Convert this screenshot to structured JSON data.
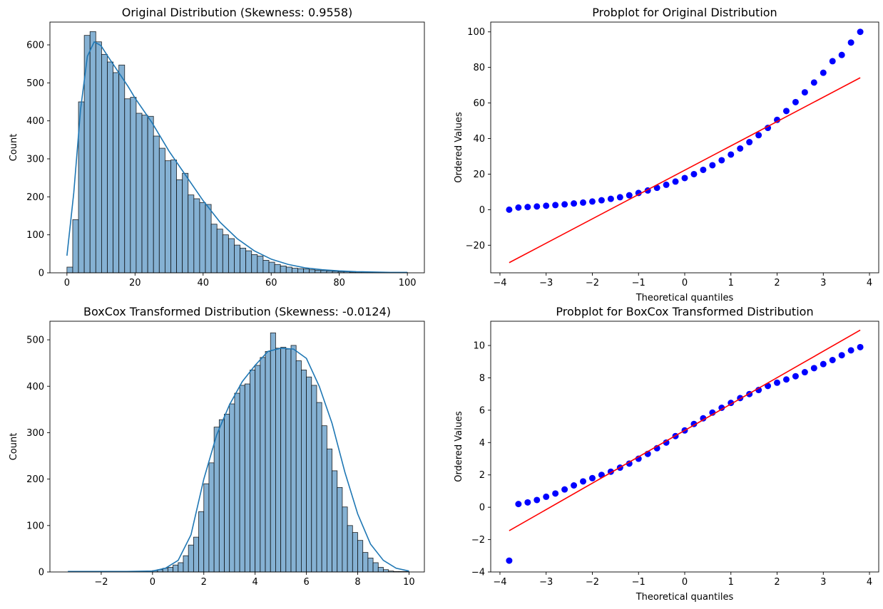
{
  "chart_data": [
    {
      "id": "hist_original",
      "type": "histogram",
      "title": "Original Distribution (Skewness: 0.9558)",
      "xlabel": "",
      "ylabel": "Count",
      "xlim": [
        -5,
        105
      ],
      "ylim": [
        0,
        660
      ],
      "xticks": [
        0,
        20,
        40,
        60,
        80,
        100
      ],
      "yticks": [
        0,
        100,
        200,
        300,
        400,
        500,
        600
      ],
      "bin_start": 0,
      "bin_width": 1.695,
      "counts": [
        15,
        140,
        450,
        625,
        635,
        608,
        575,
        555,
        527,
        547,
        458,
        462,
        420,
        415,
        412,
        360,
        328,
        295,
        297,
        245,
        262,
        205,
        195,
        185,
        180,
        128,
        115,
        100,
        90,
        73,
        65,
        58,
        48,
        44,
        33,
        28,
        22,
        18,
        15,
        12,
        11,
        10,
        8,
        7,
        6,
        5,
        4,
        3,
        3,
        2,
        2,
        2,
        2,
        2,
        1,
        1,
        1,
        1,
        1
      ],
      "kde": {
        "x": [
          0,
          2,
          4,
          6,
          8,
          10,
          12,
          15,
          18,
          20,
          25,
          30,
          35,
          40,
          45,
          50,
          55,
          60,
          65,
          70,
          75,
          80,
          85,
          90,
          95,
          100
        ],
        "y": [
          45,
          210,
          430,
          570,
          608,
          598,
          570,
          530,
          490,
          460,
          395,
          320,
          255,
          190,
          133,
          90,
          58,
          36,
          22,
          13,
          8,
          5,
          3,
          2,
          1,
          1
        ]
      },
      "bar_color": "#85b1d3",
      "line_color": "#1f77b4"
    },
    {
      "id": "probplot_original",
      "type": "scatter",
      "title": "Probplot for Original Distribution",
      "xlabel": "Theoretical quantiles",
      "ylabel": "Ordered Values",
      "xlim": [
        -4.2,
        4.2
      ],
      "ylim": [
        -35.5,
        105.5
      ],
      "xticks": [
        -4,
        -3,
        -2,
        -1,
        0,
        1,
        2,
        3,
        4
      ],
      "yticks": [
        -20,
        0,
        20,
        40,
        60,
        80,
        100
      ],
      "points": {
        "x": [
          -3.8,
          -3.6,
          -3.4,
          -3.2,
          -3.0,
          -2.8,
          -2.6,
          -2.4,
          -2.2,
          -2.0,
          -1.8,
          -1.6,
          -1.4,
          -1.2,
          -1.0,
          -0.8,
          -0.6,
          -0.4,
          -0.2,
          0.0,
          0.2,
          0.4,
          0.6,
          0.8,
          1.0,
          1.2,
          1.4,
          1.6,
          1.8,
          2.0,
          2.2,
          2.4,
          2.6,
          2.8,
          3.0,
          3.2,
          3.4,
          3.6,
          3.8
        ],
        "y": [
          0.0,
          1.2,
          1.5,
          1.8,
          2.2,
          2.6,
          3.0,
          3.5,
          4.0,
          4.6,
          5.3,
          6.1,
          7.0,
          8.1,
          9.4,
          10.8,
          12.3,
          14.0,
          15.8,
          17.8,
          20.0,
          22.4,
          25.0,
          27.8,
          31.0,
          34.4,
          38.0,
          41.9,
          46.0,
          50.5,
          55.5,
          60.5,
          66.0,
          71.5,
          77.0,
          83.5,
          87.0,
          94.0,
          100.0
        ]
      },
      "fit_line": {
        "x": [
          -3.8,
          3.8
        ],
        "y": [
          -29.8,
          74.2
        ]
      },
      "point_color": "#0000ff",
      "line_color": "#ff0000"
    },
    {
      "id": "hist_boxcox",
      "type": "histogram",
      "title": "BoxCox Transformed Distribution (Skewness: -0.0124)",
      "xlabel": "",
      "ylabel": "Count",
      "xlim": [
        -4,
        10.6
      ],
      "ylim": [
        0,
        540
      ],
      "xticks": [
        -2,
        0,
        2,
        4,
        6,
        8,
        10
      ],
      "yticks": [
        0,
        100,
        200,
        300,
        400,
        500
      ],
      "bin_start": 0,
      "bin_width": 0.2,
      "counts": [
        3,
        5,
        8,
        10,
        15,
        20,
        35,
        58,
        75,
        130,
        190,
        235,
        312,
        328,
        340,
        362,
        385,
        402,
        405,
        435,
        445,
        462,
        475,
        515,
        482,
        484,
        480,
        488,
        455,
        435,
        420,
        402,
        365,
        315,
        265,
        218,
        182,
        140,
        100,
        85,
        68,
        42,
        30,
        20,
        10,
        5,
        2,
        1,
        1,
        1
      ],
      "kde": {
        "x": [
          -3.3,
          -2,
          -1,
          0,
          0.5,
          1,
          1.5,
          2,
          2.5,
          3,
          3.5,
          4,
          4.5,
          5,
          5.5,
          6,
          6.5,
          7,
          7.5,
          8,
          8.5,
          9,
          9.5,
          10
        ],
        "y": [
          1,
          1,
          1,
          2,
          8,
          25,
          80,
          200,
          295,
          360,
          410,
          445,
          475,
          482,
          480,
          460,
          400,
          320,
          215,
          125,
          60,
          25,
          8,
          2
        ]
      },
      "bar_color": "#85b1d3",
      "line_color": "#1f77b4"
    },
    {
      "id": "probplot_boxcox",
      "type": "scatter",
      "title": "Probplot for BoxCox Transformed Distribution",
      "xlabel": "Theoretical quantiles",
      "ylabel": "Ordered Values",
      "xlim": [
        -4.2,
        4.2
      ],
      "ylim": [
        -4,
        11.5
      ],
      "xticks": [
        -4,
        -3,
        -2,
        -1,
        0,
        1,
        2,
        3,
        4
      ],
      "yticks": [
        -4,
        -2,
        0,
        2,
        4,
        6,
        8,
        10
      ],
      "points": {
        "x": [
          -3.8,
          -3.6,
          -3.4,
          -3.2,
          -3.0,
          -2.8,
          -2.6,
          -2.4,
          -2.2,
          -2.0,
          -1.8,
          -1.6,
          -1.4,
          -1.2,
          -1.0,
          -0.8,
          -0.6,
          -0.4,
          -0.2,
          0.0,
          0.2,
          0.4,
          0.6,
          0.8,
          1.0,
          1.2,
          1.4,
          1.6,
          1.8,
          2.0,
          2.2,
          2.4,
          2.6,
          2.8,
          3.0,
          3.2,
          3.4,
          3.6,
          3.8
        ],
        "y": [
          -3.3,
          0.2,
          0.3,
          0.45,
          0.65,
          0.85,
          1.1,
          1.35,
          1.6,
          1.8,
          2.0,
          2.2,
          2.45,
          2.7,
          3.0,
          3.3,
          3.65,
          4.0,
          4.4,
          4.75,
          5.15,
          5.5,
          5.85,
          6.15,
          6.45,
          6.75,
          7.0,
          7.25,
          7.5,
          7.7,
          7.9,
          8.1,
          8.35,
          8.6,
          8.85,
          9.1,
          9.4,
          9.7,
          9.9
        ]
      },
      "fit_line": {
        "x": [
          -3.8,
          3.8
        ],
        "y": [
          -1.45,
          10.95
        ]
      },
      "point_color": "#0000ff",
      "line_color": "#ff0000"
    }
  ]
}
